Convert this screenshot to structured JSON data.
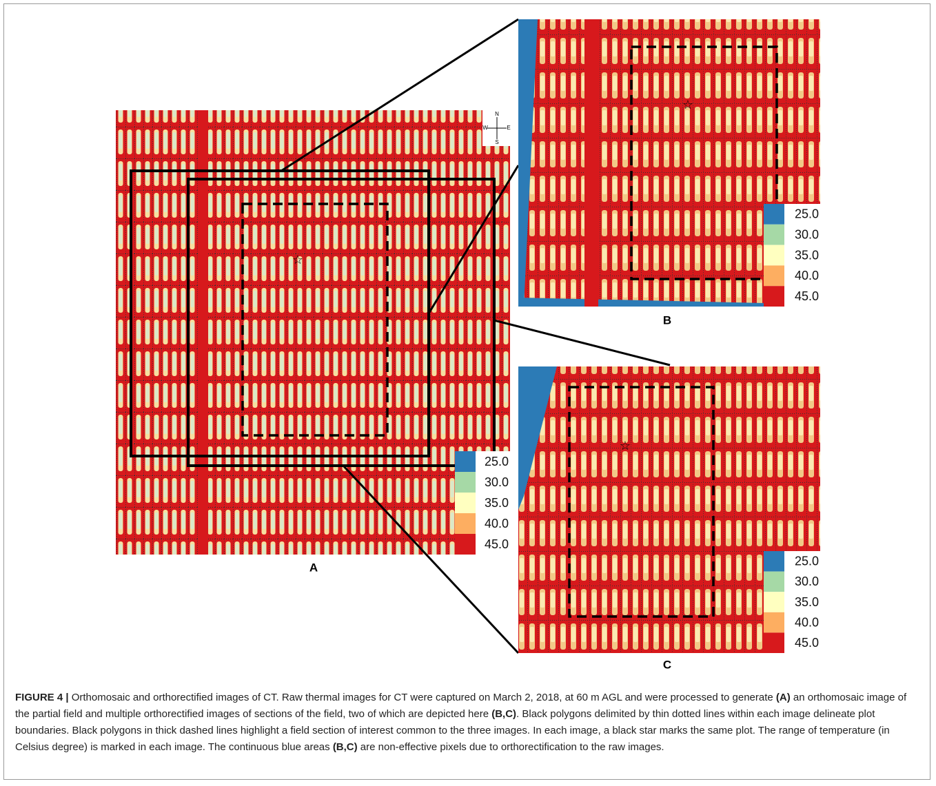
{
  "figure": {
    "panels": [
      {
        "label": "A",
        "legend": [
          {
            "label": "25.0",
            "color": "#2c7bb6"
          },
          {
            "label": "30.0",
            "color": "#a6d9a6"
          },
          {
            "label": "35.0",
            "color": "#ffffc0"
          },
          {
            "label": "40.0",
            "color": "#fdae61"
          },
          {
            "label": "45.0",
            "color": "#d7191c"
          }
        ]
      },
      {
        "label": "B",
        "legend": [
          {
            "label": "25.0",
            "color": "#2c7bb6"
          },
          {
            "label": "30.0",
            "color": "#a6d9a6"
          },
          {
            "label": "35.0",
            "color": "#ffffc0"
          },
          {
            "label": "40.0",
            "color": "#fdae61"
          },
          {
            "label": "45.0",
            "color": "#d7191c"
          }
        ]
      },
      {
        "label": "C",
        "legend": [
          {
            "label": "25.0",
            "color": "#2c7bb6"
          },
          {
            "label": "30.0",
            "color": "#a6d9a6"
          },
          {
            "label": "35.0",
            "color": "#ffffc0"
          },
          {
            "label": "40.0",
            "color": "#fdae61"
          },
          {
            "label": "45.0",
            "color": "#d7191c"
          }
        ]
      }
    ],
    "compass": {
      "n": "N",
      "s": "S",
      "w": "W",
      "e": "E"
    },
    "star": "☆",
    "caption": [
      {
        "text": "FIGURE 4 |",
        "bold": true
      },
      {
        "text": " Orthomosaic and orthorectified images of CT. Raw thermal images for CT were captured on March 2, 2018, at 60 m AGL and were processed to generate ",
        "bold": false
      },
      {
        "text": "(A)",
        "bold": true
      },
      {
        "text": " an orthomosaic image of the partial field and multiple orthorectified images of sections of the field, two of which are depicted here ",
        "bold": false
      },
      {
        "text": "(B,C)",
        "bold": true
      },
      {
        "text": ". Black polygons delimited by thin dotted lines within each image delineate plot boundaries. Black polygons in thick dashed lines highlight a field section of interest common to the three images. In each image, a black star marks the same plot. The range of temperature (in Celsius degree) is marked in each image. The continuous blue areas ",
        "bold": false
      },
      {
        "text": "(B,C)",
        "bold": true
      },
      {
        "text": " are non-effective pixels due to orthorectification to the raw images.",
        "bold": false
      }
    ]
  }
}
